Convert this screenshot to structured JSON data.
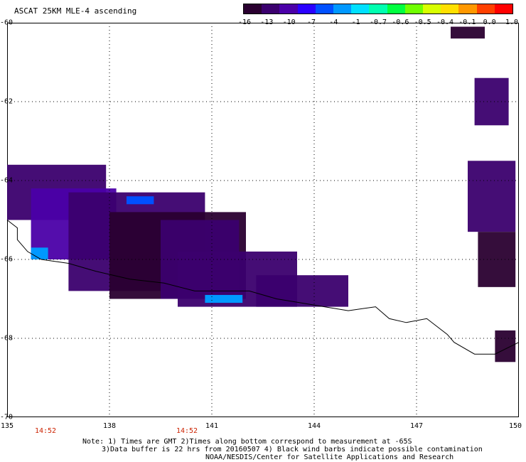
{
  "title": "ASCAT 25KM MLE-4 ascending",
  "colorbar": {
    "colors": [
      "#2a0030",
      "#3b006e",
      "#4b00a8",
      "#2a00ff",
      "#0050ff",
      "#0098ff",
      "#00e0ff",
      "#00ffb0",
      "#00ff40",
      "#70ff00",
      "#d8ff00",
      "#ffe000",
      "#ff9800",
      "#ff4000",
      "#ff0000"
    ],
    "labels": [
      "-16",
      "-13",
      "-10",
      "-7",
      "-4",
      "-1",
      "-0.7",
      "-0.6",
      "-0.5",
      "-0.4",
      "-0.1",
      "0.0",
      "1.0"
    ]
  },
  "axes": {
    "lat_labels": [
      "-60",
      "-62",
      "-64",
      "-66",
      "-68",
      "-70"
    ],
    "lon_labels": [
      "135",
      "138",
      "141",
      "144",
      "147",
      "150"
    ],
    "grid": "dotted"
  },
  "times": [
    "14:52",
    "14:52"
  ],
  "notes": {
    "line1": "Note: 1) Times are GMT 2)Times along bottom correspond to measurement at -65S",
    "line2": "3)Data buffer is 22 hrs from 20160507 4) Black wind barbs indicate possible contamination",
    "line3": "NOAA/NESDIS/Center for Satellite Applications and Research"
  },
  "map_data": {
    "lon_range": [
      135,
      150
    ],
    "lat_range": [
      -70,
      -60
    ],
    "swaths": [
      {
        "lon": [
          135.0,
          137.9
        ],
        "lat": [
          -63.6,
          -65.0
        ],
        "value": "-13"
      },
      {
        "lon": [
          135.7,
          138.2
        ],
        "lat": [
          -64.2,
          -66.0
        ],
        "value": "-10"
      },
      {
        "lon": [
          136.8,
          140.8
        ],
        "lat": [
          -64.3,
          -66.8
        ],
        "value": "-13"
      },
      {
        "lon": [
          138.0,
          142.0
        ],
        "lat": [
          -64.8,
          -67.0
        ],
        "value": "-16"
      },
      {
        "lon": [
          139.5,
          141.8
        ],
        "lat": [
          -65.0,
          -67.0
        ],
        "value": "-13"
      },
      {
        "lon": [
          140.0,
          143.5
        ],
        "lat": [
          -65.8,
          -67.2
        ],
        "value": "-13"
      },
      {
        "lon": [
          142.3,
          145.0
        ],
        "lat": [
          -66.4,
          -67.2
        ],
        "value": "-13"
      },
      {
        "lon": [
          148.0,
          149.0
        ],
        "lat": [
          -60.1,
          -60.4
        ],
        "value": "-16"
      },
      {
        "lon": [
          148.7,
          149.7
        ],
        "lat": [
          -61.4,
          -62.6
        ],
        "value": "-13"
      },
      {
        "lon": [
          148.5,
          149.9
        ],
        "lat": [
          -63.5,
          -65.3
        ],
        "value": "-13"
      },
      {
        "lon": [
          148.8,
          149.9
        ],
        "lat": [
          -65.3,
          -66.7
        ],
        "value": "-16"
      },
      {
        "lon": [
          149.3,
          149.9
        ],
        "lat": [
          -67.8,
          -68.6
        ],
        "value": "-16"
      }
    ],
    "highlights": [
      {
        "lon": [
          135.7,
          136.2
        ],
        "lat": [
          -65.7,
          -66.0
        ],
        "value": "-1"
      },
      {
        "lon": [
          140.8,
          141.9
        ],
        "lat": [
          -66.9,
          -67.1
        ],
        "value": "-1"
      },
      {
        "lon": [
          138.5,
          139.3
        ],
        "lat": [
          -64.4,
          -64.6
        ],
        "value": "-4"
      }
    ]
  }
}
